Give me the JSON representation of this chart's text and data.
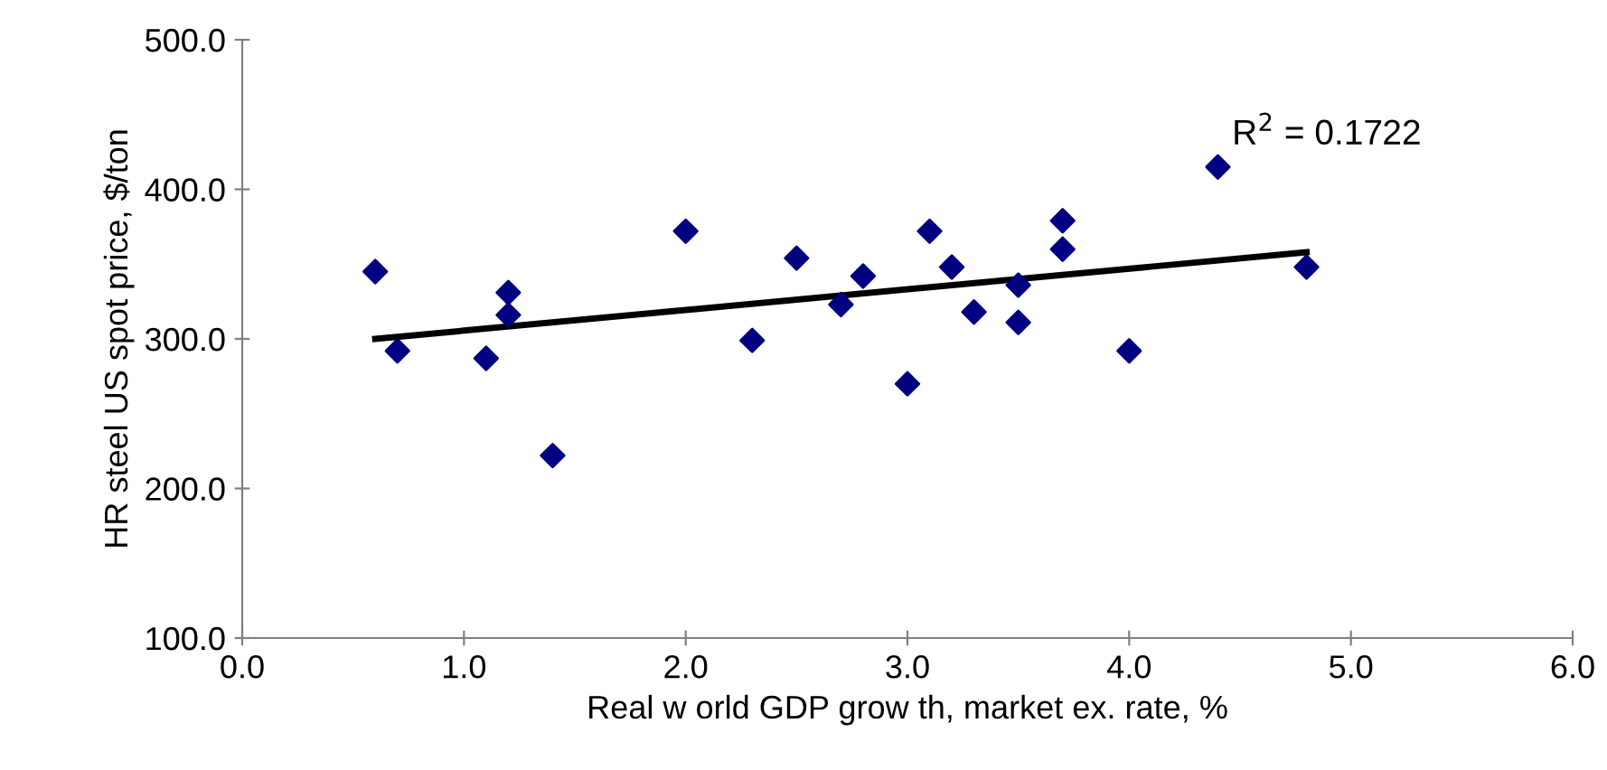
{
  "chart_data": {
    "type": "scatter",
    "xlabel": "Real w orld GDP grow th, market ex. rate, %",
    "ylabel": "HR steel US spot price, $/ton",
    "annotations": [
      "R$^{2}$ = 0.1722"
    ],
    "series": [
      {
        "color": "#000080",
        "marker": "diamond",
        "x": [
          0.6,
          0.7,
          1.1,
          1.2,
          1.2,
          1.4,
          2.0,
          2.3,
          2.5,
          2.7,
          2.8,
          3.0,
          3.1,
          3.2,
          3.3,
          3.5,
          3.5,
          3.7,
          3.7,
          4.0,
          4.4,
          4.8
        ],
        "values": [
          345,
          292,
          287,
          331,
          316,
          222,
          372,
          299,
          354,
          323,
          342,
          270,
          372,
          348,
          318,
          336,
          311,
          379,
          360,
          292,
          415,
          348
        ]
      },
      {
        "type": "line",
        "color": "#000000",
        "marker": "none",
        "x": [
          0.6,
          4.8
        ],
        "values": [
          300,
          358
        ]
      }
    ],
    "xlim": [
      0.0,
      6.0
    ],
    "xticks": [
      {
        "value": 0,
        "label": "0.0"
      },
      {
        "value": 1,
        "label": "1.0"
      },
      {
        "value": 2,
        "label": "2.0"
      },
      {
        "value": 3,
        "label": "3.0"
      },
      {
        "value": 4,
        "label": "4.0"
      },
      {
        "value": 5,
        "label": "5.0"
      },
      {
        "value": 6,
        "label": "6.0"
      }
    ],
    "ylim": [
      100.0,
      500.0
    ],
    "yticks": [
      {
        "value": 100,
        "label": "100.0"
      },
      {
        "value": 200,
        "label": "200.0"
      },
      {
        "value": 300,
        "label": "300.0"
      },
      {
        "value": 400,
        "label": "400.0"
      },
      {
        "value": 500,
        "label": "500.0"
      }
    ],
    "grid": false,
    "legend": false
  }
}
